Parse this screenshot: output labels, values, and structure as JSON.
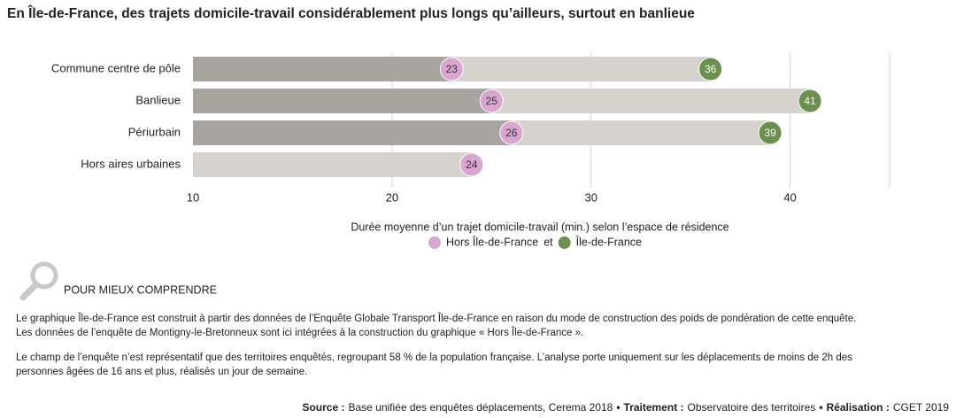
{
  "chart_data": {
    "type": "bar",
    "title": "En Île-de-France, des trajets domicile-travail considérablement plus longs qu’ailleurs, surtout en banlieue",
    "categories": [
      "Commune centre de pôle",
      "Banlieue",
      "Périurbain",
      "Hors aires urbaines"
    ],
    "series": [
      {
        "name": "Hors Île-de-France",
        "color": "#d9a6d0",
        "values": [
          23,
          25,
          26,
          24
        ]
      },
      {
        "name": "Île-de-France",
        "color": "#6a8f4e",
        "values": [
          36,
          41,
          39,
          null
        ]
      }
    ],
    "xlim": [
      10,
      45
    ],
    "xticks": [
      10,
      20,
      30,
      40
    ],
    "grid": true,
    "xlabel": "Durée moyenne d’un trajet domicile-travail (min.) selon l’espace de résidence",
    "legend_joiner": "et"
  },
  "notes": {
    "heading": "POUR MIEUX COMPRENDRE",
    "paragraphs": [
      [
        "Le graphique Île-de-France est construit à partir des données de l’Enquête Globale Transport Île-de-France en raison du mode de construction des poids de pondération de cette enquête.",
        "Les données de l’enquête de Montigny-le-Bretonneux sont ici intégrées à la construction du graphique « Hors Île-de-France »."
      ],
      [
        "Le champ de l’enquête n’est représentatif que des territoires enquêtés, regroupant 58 % de la population française. L’analyse porte uniquement sur les déplacements de moins de 2h des",
        "personnes âgées de 16 ans et plus, réalisés un jour de semaine."
      ]
    ]
  },
  "source": [
    {
      "label": "Source :",
      "text": "Base unifiée des enquêtes déplacements, Cerema 2018"
    },
    {
      "label": "Traitement :",
      "text": "Observatoire des territoires"
    },
    {
      "label": "Réalisation :",
      "text": "CGET 2019"
    }
  ],
  "source_separator": "•"
}
